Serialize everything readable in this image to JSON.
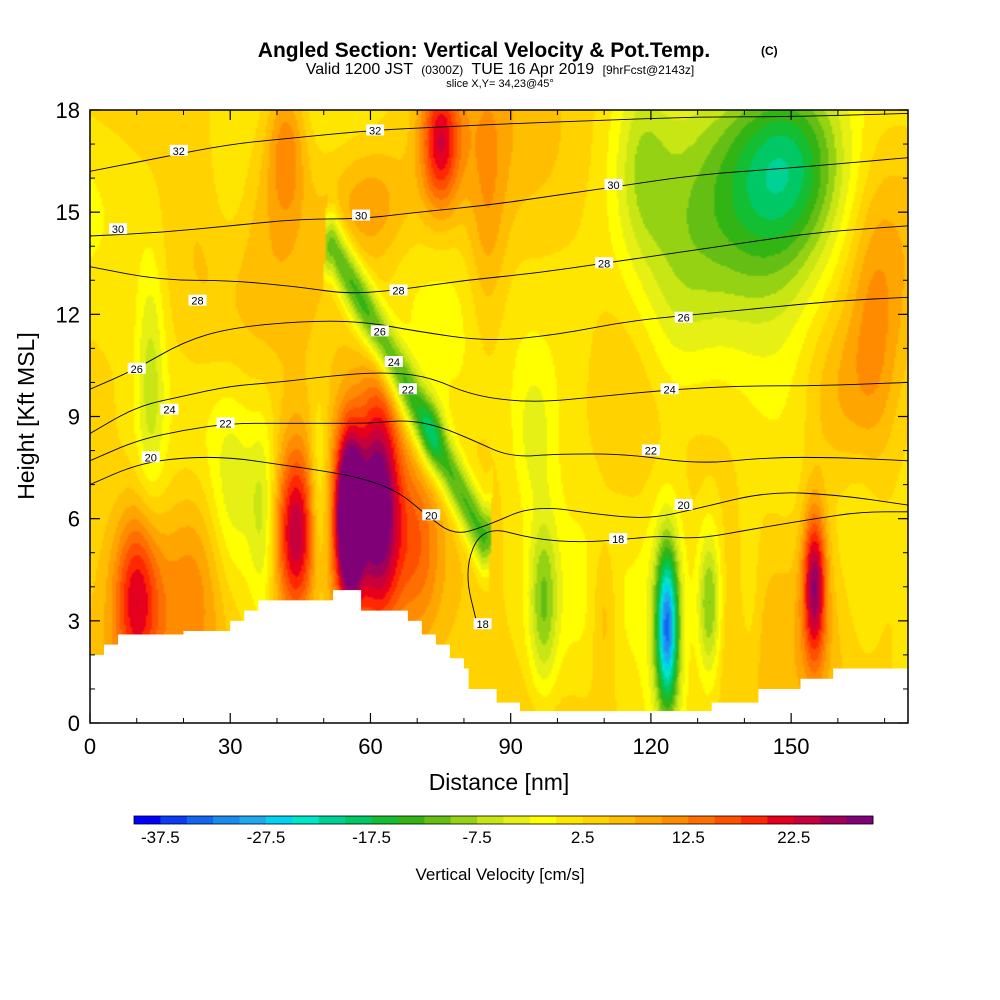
{
  "chart_data": {
    "type": "heatmap",
    "title": "Angled Section: Vertical Velocity & Pot.Temp.",
    "title_suffix": "(C)",
    "subtitle": {
      "valid": "Valid 1200 JST",
      "utc": "(0300Z)",
      "date": "TUE 16 Apr 2019",
      "forecast": "[9hrFcst@2143z]"
    },
    "slice_info": "slice X,Y= 34,23@45°",
    "xlabel": "Distance [nm]",
    "ylabel": "Height [Kft MSL]",
    "xlim": [
      0,
      175
    ],
    "ylim": [
      0,
      18
    ],
    "xticks": [
      "0",
      "30",
      "60",
      "90",
      "120",
      "150"
    ],
    "yticks": [
      "0",
      "3",
      "6",
      "9",
      "12",
      "15",
      "18"
    ],
    "xtick_values": [
      0,
      30,
      60,
      90,
      120,
      150
    ],
    "ytick_values": [
      0,
      3,
      6,
      9,
      12,
      15,
      18
    ],
    "colorbar": {
      "title": "Vertical Velocity [cm/s]",
      "tick_labels": [
        "-37.5",
        "-27.5",
        "-17.5",
        "-7.5",
        "2.5",
        "12.5",
        "22.5"
      ],
      "tick_values": [
        -37.5,
        -27.5,
        -17.5,
        -7.5,
        2.5,
        12.5,
        22.5
      ],
      "min": -40,
      "max": 30,
      "step": 2.5,
      "colors": [
        "#0000ff",
        "#0a3cf5",
        "#1266f0",
        "#1a8cf0",
        "#1eaaf0",
        "#00d2f0",
        "#00e6c8",
        "#00d296",
        "#00c864",
        "#14be32",
        "#32b414",
        "#64be14",
        "#96d214",
        "#c8e614",
        "#e6f014",
        "#ffff00",
        "#ffe600",
        "#ffd200",
        "#ffbe00",
        "#ffa500",
        "#ff8c00",
        "#ff6e00",
        "#ff5000",
        "#ff2800",
        "#e6001e",
        "#c8003c",
        "#a0005a",
        "#800078"
      ]
    },
    "contour_series": [
      {
        "name": "18",
        "values": [
          [
            83,
            2.8
          ],
          [
            80,
            4.5
          ],
          [
            84,
            5.8
          ],
          [
            95,
            5.4
          ],
          [
            105,
            5.3
          ],
          [
            115,
            5.4
          ],
          [
            122,
            5.5
          ],
          [
            130,
            5.4
          ],
          [
            142,
            5.7
          ],
          [
            155,
            6.0
          ],
          [
            165,
            6.2
          ],
          [
            175,
            6.2
          ]
        ]
      },
      {
        "name": "20",
        "values": [
          [
            0,
            7.0
          ],
          [
            10,
            7.6
          ],
          [
            20,
            7.8
          ],
          [
            30,
            7.8
          ],
          [
            40,
            7.6
          ],
          [
            50,
            7.4
          ],
          [
            58,
            7.2
          ],
          [
            66,
            6.8
          ],
          [
            72,
            6.1
          ],
          [
            78,
            5.5
          ],
          [
            85,
            5.8
          ],
          [
            95,
            6.4
          ],
          [
            110,
            6.1
          ],
          [
            120,
            6.0
          ],
          [
            130,
            6.3
          ],
          [
            145,
            6.8
          ],
          [
            160,
            6.7
          ],
          [
            175,
            6.4
          ]
        ]
      },
      {
        "name": "22",
        "values": [
          [
            0,
            7.7
          ],
          [
            10,
            8.3
          ],
          [
            20,
            8.6
          ],
          [
            30,
            8.8
          ],
          [
            42,
            8.8
          ],
          [
            52,
            8.8
          ],
          [
            60,
            8.8
          ],
          [
            68,
            8.9
          ],
          [
            75,
            8.7
          ],
          [
            82,
            8.3
          ],
          [
            90,
            7.8
          ],
          [
            100,
            7.9
          ],
          [
            115,
            7.9
          ],
          [
            130,
            7.6
          ],
          [
            145,
            7.8
          ],
          [
            160,
            7.8
          ],
          [
            175,
            7.7
          ]
        ]
      },
      {
        "name": "24",
        "values": [
          [
            0,
            8.5
          ],
          [
            10,
            9.3
          ],
          [
            20,
            9.6
          ],
          [
            30,
            9.9
          ],
          [
            40,
            10.0
          ],
          [
            52,
            10.2
          ],
          [
            62,
            10.3
          ],
          [
            72,
            10.2
          ],
          [
            82,
            9.6
          ],
          [
            95,
            9.4
          ],
          [
            110,
            9.6
          ],
          [
            125,
            9.8
          ],
          [
            140,
            9.9
          ],
          [
            155,
            9.9
          ],
          [
            175,
            10.0
          ]
        ]
      },
      {
        "name": "26",
        "values": [
          [
            0,
            9.8
          ],
          [
            10,
            10.4
          ],
          [
            20,
            11.2
          ],
          [
            30,
            11.6
          ],
          [
            45,
            11.8
          ],
          [
            58,
            11.8
          ],
          [
            70,
            11.5
          ],
          [
            85,
            11.2
          ],
          [
            100,
            11.4
          ],
          [
            115,
            11.8
          ],
          [
            130,
            12.0
          ],
          [
            145,
            12.2
          ],
          [
            160,
            12.4
          ],
          [
            175,
            12.5
          ]
        ]
      },
      {
        "name": "28",
        "values": [
          [
            0,
            13.4
          ],
          [
            15,
            13.0
          ],
          [
            30,
            13.0
          ],
          [
            45,
            12.8
          ],
          [
            55,
            12.6
          ],
          [
            65,
            12.7
          ],
          [
            80,
            13.0
          ],
          [
            95,
            13.2
          ],
          [
            110,
            13.5
          ],
          [
            125,
            13.8
          ],
          [
            140,
            14.1
          ],
          [
            155,
            14.4
          ],
          [
            175,
            14.6
          ]
        ]
      },
      {
        "name": "30",
        "values": [
          [
            0,
            14.3
          ],
          [
            15,
            14.4
          ],
          [
            30,
            14.6
          ],
          [
            45,
            14.8
          ],
          [
            58,
            14.8
          ],
          [
            70,
            15.0
          ],
          [
            85,
            15.2
          ],
          [
            100,
            15.5
          ],
          [
            115,
            15.8
          ],
          [
            130,
            16.1
          ],
          [
            150,
            16.3
          ],
          [
            175,
            16.6
          ]
        ]
      },
      {
        "name": "32",
        "values": [
          [
            0,
            16.2
          ],
          [
            15,
            16.6
          ],
          [
            30,
            17.0
          ],
          [
            45,
            17.2
          ],
          [
            60,
            17.4
          ],
          [
            75,
            17.5
          ],
          [
            90,
            17.6
          ],
          [
            110,
            17.7
          ],
          [
            130,
            17.8
          ],
          [
            150,
            17.8
          ],
          [
            175,
            17.9
          ]
        ]
      }
    ],
    "contour_labels": [
      {
        "text": "32",
        "x": 19,
        "y": 16.8
      },
      {
        "text": "32",
        "x": 61,
        "y": 17.4
      },
      {
        "text": "30",
        "x": 6,
        "y": 14.5
      },
      {
        "text": "30",
        "x": 58,
        "y": 14.9
      },
      {
        "text": "30",
        "x": 112,
        "y": 15.8
      },
      {
        "text": "28",
        "x": 23,
        "y": 12.4
      },
      {
        "text": "28",
        "x": 66,
        "y": 12.7
      },
      {
        "text": "28",
        "x": 110,
        "y": 13.5
      },
      {
        "text": "26",
        "x": 10,
        "y": 10.4
      },
      {
        "text": "26",
        "x": 62,
        "y": 11.5
      },
      {
        "text": "26",
        "x": 127,
        "y": 11.9
      },
      {
        "text": "24",
        "x": 17,
        "y": 9.2
      },
      {
        "text": "24",
        "x": 65,
        "y": 10.6
      },
      {
        "text": "24",
        "x": 124,
        "y": 9.8
      },
      {
        "text": "22",
        "x": 29,
        "y": 8.8
      },
      {
        "text": "22",
        "x": 68,
        "y": 9.8
      },
      {
        "text": "22",
        "x": 120,
        "y": 8.0
      },
      {
        "text": "20",
        "x": 13,
        "y": 7.8
      },
      {
        "text": "20",
        "x": 73,
        "y": 6.1
      },
      {
        "text": "20",
        "x": 127,
        "y": 6.4
      },
      {
        "text": "18",
        "x": 113,
        "y": 5.4
      },
      {
        "text": "18",
        "x": 84,
        "y": 2.9
      }
    ],
    "terrain": [
      [
        0,
        2.0
      ],
      [
        3,
        2.0
      ],
      [
        3,
        2.3
      ],
      [
        6,
        2.3
      ],
      [
        6,
        2.6
      ],
      [
        20,
        2.6
      ],
      [
        20,
        2.7
      ],
      [
        30,
        2.7
      ],
      [
        30,
        3.0
      ],
      [
        33,
        3.0
      ],
      [
        33,
        3.3
      ],
      [
        36,
        3.3
      ],
      [
        36,
        3.6
      ],
      [
        52,
        3.6
      ],
      [
        52,
        3.9
      ],
      [
        58,
        3.9
      ],
      [
        58,
        3.3
      ],
      [
        68,
        3.3
      ],
      [
        68,
        3.0
      ],
      [
        71,
        3.0
      ],
      [
        71,
        2.6
      ],
      [
        74,
        2.6
      ],
      [
        74,
        2.3
      ],
      [
        77,
        2.3
      ],
      [
        77,
        1.9
      ],
      [
        80,
        1.9
      ],
      [
        80,
        1.6
      ],
      [
        81,
        1.6
      ],
      [
        81,
        1.0
      ],
      [
        87,
        1.0
      ],
      [
        87,
        0.6
      ],
      [
        92,
        0.6
      ],
      [
        92,
        0.35
      ],
      [
        133,
        0.35
      ],
      [
        133,
        0.6
      ],
      [
        143,
        0.6
      ],
      [
        143,
        1.0
      ],
      [
        152,
        1.0
      ],
      [
        152,
        1.3
      ],
      [
        159,
        1.3
      ],
      [
        159,
        1.6
      ],
      [
        175,
        1.6
      ]
    ],
    "field_base": [
      {
        "x": 0,
        "y": 2.0,
        "v": 0
      },
      {
        "x": 175,
        "y": 18,
        "v": 0
      }
    ],
    "velocity_features": [
      {
        "x": 10,
        "y": 3.8,
        "sx": 3.5,
        "sy": 1.8,
        "v": 17
      },
      {
        "x": 22,
        "y": 4.5,
        "sx": 5.5,
        "sy": 2.2,
        "v": 9
      },
      {
        "x": 44,
        "y": 5.6,
        "sx": 3.2,
        "sy": 1.9,
        "v": 22
      },
      {
        "x": 55.5,
        "y": 6.0,
        "sx": 1.8,
        "sy": 1.6,
        "v": 30
      },
      {
        "x": 55.5,
        "y": 6.0,
        "sx": 3.5,
        "sy": 2.4,
        "v": 12
      },
      {
        "x": 62,
        "y": 6.5,
        "sx": 3.2,
        "sy": 2.6,
        "v": 24
      },
      {
        "x": 70,
        "y": 5.2,
        "sx": 3.5,
        "sy": 2.0,
        "v": 8
      },
      {
        "x": 49,
        "y": 6.5,
        "sx": 1.6,
        "sy": 2.0,
        "v": -9
      },
      {
        "x": 37,
        "y": 6.0,
        "sx": 2.0,
        "sy": 2.0,
        "v": -7
      },
      {
        "x": 30,
        "y": 6.5,
        "sx": 3.5,
        "sy": 2.2,
        "v": -5
      },
      {
        "x": 13,
        "y": 10.2,
        "sx": 2.2,
        "sy": 2.5,
        "v": -8
      },
      {
        "x": 75,
        "y": 17.0,
        "sx": 3.0,
        "sy": 1.4,
        "v": 18
      },
      {
        "x": 42,
        "y": 17.0,
        "sx": 3.0,
        "sy": 1.6,
        "v": 10
      },
      {
        "x": 60,
        "y": 15.2,
        "sx": 6.0,
        "sy": 1.2,
        "v": 7
      },
      {
        "x": 30,
        "y": 15.5,
        "sx": 3.5,
        "sy": 2.0,
        "v": -4
      },
      {
        "x": 97,
        "y": 3.5,
        "sx": 2.2,
        "sy": 1.8,
        "v": -11
      },
      {
        "x": 110,
        "y": 3.2,
        "sx": 2.0,
        "sy": 1.6,
        "v": 6
      },
      {
        "x": 123.5,
        "y": 2.8,
        "sx": 1.6,
        "sy": 1.6,
        "v": -27
      },
      {
        "x": 123.5,
        "y": 2.8,
        "sx": 3.0,
        "sy": 2.8,
        "v": -8
      },
      {
        "x": 132.5,
        "y": 3.5,
        "sx": 1.8,
        "sy": 1.6,
        "v": -14
      },
      {
        "x": 141,
        "y": 3.5,
        "sx": 2.0,
        "sy": 2.0,
        "v": -4
      },
      {
        "x": 155,
        "y": 4.1,
        "sx": 1.8,
        "sy": 1.6,
        "v": 23
      },
      {
        "x": 160,
        "y": 9.5,
        "sx": 6.0,
        "sy": 2.0,
        "v": 8
      },
      {
        "x": 103,
        "y": 10.5,
        "sx": 7.0,
        "sy": 2.5,
        "v": -3
      },
      {
        "x": 125,
        "y": 11.5,
        "sx": 6.0,
        "sy": 2.5,
        "v": -5
      },
      {
        "x": 140,
        "y": 14.5,
        "sx": 15.0,
        "sy": 3.0,
        "v": -10
      },
      {
        "x": 150,
        "y": 16.5,
        "sx": 9.0,
        "sy": 2.0,
        "v": -16
      },
      {
        "x": 118,
        "y": 16.5,
        "sx": 4.0,
        "sy": 2.0,
        "v": -6
      },
      {
        "x": 85,
        "y": 14.5,
        "sx": 3.0,
        "sy": 3.0,
        "v": 6
      },
      {
        "x": 168,
        "y": 11.0,
        "sx": 4.0,
        "sy": 3.0,
        "v": 7
      },
      {
        "x": 95,
        "y": 8.5,
        "sx": 3.0,
        "sy": 1.5,
        "v": -5
      },
      {
        "x": 165,
        "y": 4.5,
        "sx": 3.0,
        "sy": 2.5,
        "v": -3
      }
    ],
    "downdraft_band": {
      "x0": 52,
      "y0": 14.0,
      "x1": 84,
      "y1": 5.5,
      "width": 2.8,
      "v": -17,
      "core_v": -24,
      "core_x": 73,
      "core_y": 8.5
    }
  }
}
